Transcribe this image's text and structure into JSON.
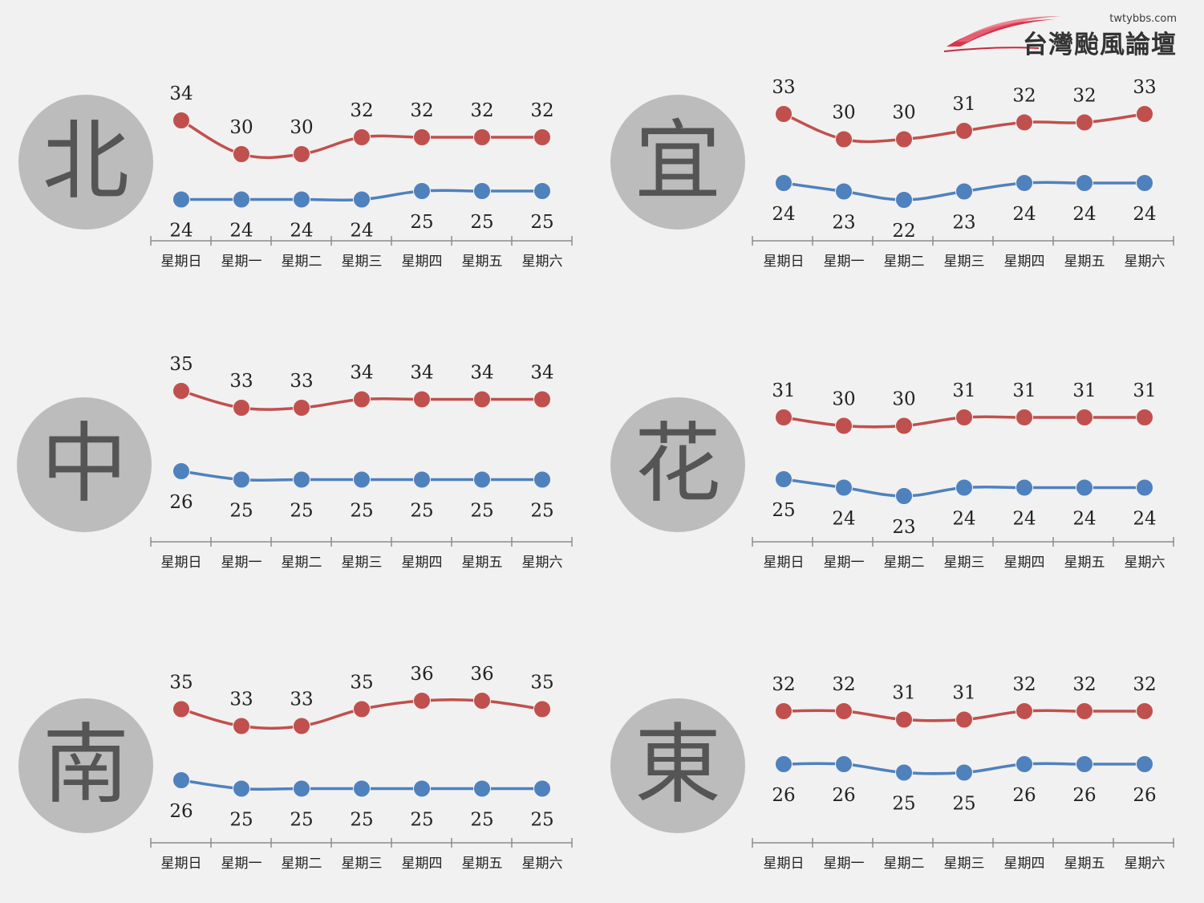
{
  "logo": {
    "url": "twtybbs.com",
    "name": "台灣颱風論壇"
  },
  "colors": {
    "high": "#c0504d",
    "low": "#4f81bd",
    "circle": "#bcbcbc",
    "circle_text": "#555555",
    "background": "#f2f1f1"
  },
  "chart_data": [
    {
      "type": "line",
      "region": "北",
      "categories": [
        "星期日",
        "星期一",
        "星期二",
        "星期三",
        "星期四",
        "星期五",
        "星期六"
      ],
      "series": [
        {
          "values": [
            34,
            30,
            30,
            32,
            32,
            32,
            32
          ]
        },
        {
          "values": [
            24,
            24,
            24,
            24,
            25,
            25,
            25
          ]
        }
      ]
    },
    {
      "type": "line",
      "region": "宜",
      "categories": [
        "星期日",
        "星期一",
        "星期二",
        "星期三",
        "星期四",
        "星期五",
        "星期六"
      ],
      "series": [
        {
          "values": [
            33,
            30,
            30,
            31,
            32,
            32,
            33
          ]
        },
        {
          "values": [
            24,
            23,
            22,
            23,
            24,
            24,
            24
          ]
        }
      ]
    },
    {
      "type": "line",
      "region": "中",
      "categories": [
        "星期日",
        "星期一",
        "星期二",
        "星期三",
        "星期四",
        "星期五",
        "星期六"
      ],
      "series": [
        {
          "values": [
            35,
            33,
            33,
            34,
            34,
            34,
            34
          ]
        },
        {
          "values": [
            26,
            25,
            25,
            25,
            25,
            25,
            25
          ]
        }
      ]
    },
    {
      "type": "line",
      "region": "花",
      "categories": [
        "星期日",
        "星期一",
        "星期二",
        "星期三",
        "星期四",
        "星期五",
        "星期六"
      ],
      "series": [
        {
          "values": [
            31,
            30,
            30,
            31,
            31,
            31,
            31
          ]
        },
        {
          "values": [
            25,
            24,
            23,
            24,
            24,
            24,
            24
          ]
        }
      ]
    },
    {
      "type": "line",
      "region": "南",
      "categories": [
        "星期日",
        "星期一",
        "星期二",
        "星期三",
        "星期四",
        "星期五",
        "星期六"
      ],
      "series": [
        {
          "values": [
            35,
            33,
            33,
            35,
            36,
            36,
            35
          ]
        },
        {
          "values": [
            26,
            25,
            25,
            25,
            25,
            25,
            25
          ]
        }
      ]
    },
    {
      "type": "line",
      "region": "東",
      "categories": [
        "星期日",
        "星期一",
        "星期二",
        "星期三",
        "星期四",
        "星期五",
        "星期六"
      ],
      "series": [
        {
          "values": [
            32,
            32,
            31,
            31,
            32,
            32,
            32
          ]
        },
        {
          "values": [
            26,
            26,
            25,
            25,
            26,
            26,
            26
          ]
        }
      ]
    }
  ]
}
